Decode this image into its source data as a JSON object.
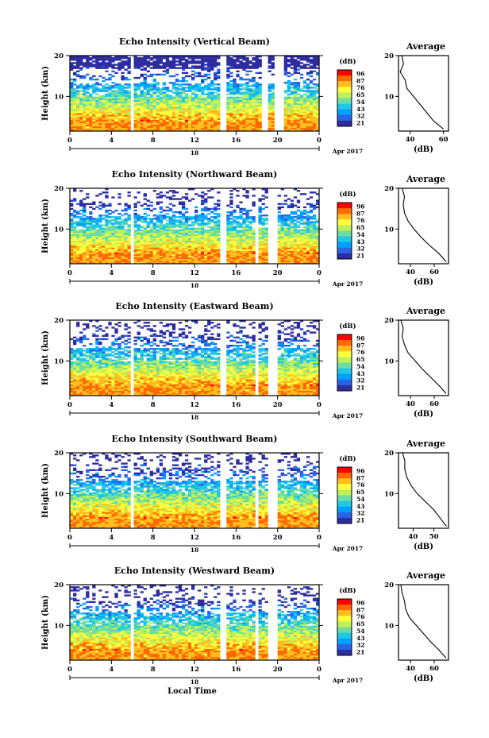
{
  "figure": {
    "x_axis_label": "Local Time",
    "date_day": "18",
    "date_month_year": "Apr 2017"
  },
  "colorbar": {
    "unit": "(dB)",
    "ticks": [
      "96",
      "87",
      "76",
      "65",
      "54",
      "43",
      "32",
      "21"
    ],
    "colors": [
      "#ff0000",
      "#ff6a00",
      "#ffbe1e",
      "#ffff3c",
      "#bef05a",
      "#6edca0",
      "#1ec8e6",
      "#00a0ff",
      "#2864e6",
      "#2d2da0"
    ]
  },
  "average_panel": {
    "title": "Average",
    "xlabel": "(dB)"
  },
  "chart_data": [
    {
      "type": "heatmap",
      "title": "Echo Intensity (Vertical Beam)",
      "xlabel": "",
      "ylabel": "Height (km)",
      "x_ticks": [
        "0",
        "4",
        "8",
        "12",
        "16",
        "20",
        "0"
      ],
      "y_ticks": [
        "10",
        "20"
      ],
      "xlim": [
        0,
        24
      ],
      "ylim": [
        1.5,
        20
      ],
      "data_gaps_hours": [
        [
          5.8,
          6.2
        ],
        [
          14.6,
          15.2
        ],
        [
          18.6,
          19.2
        ],
        [
          19.8,
          20.6
        ]
      ],
      "profile": {
        "title": "Average",
        "xlabel": "(dB)",
        "x_ticks": [
          "40",
          "60"
        ],
        "xlim": [
          33,
          63
        ],
        "heights_km": [
          20,
          18,
          16,
          14,
          12,
          10,
          8,
          6,
          4,
          2
        ],
        "values_db": [
          35,
          36,
          34,
          37,
          38,
          42,
          46,
          50,
          54,
          60
        ]
      }
    },
    {
      "type": "heatmap",
      "title": "Echo Intensity (Northward Beam)",
      "xlabel": "",
      "ylabel": "Height (km)",
      "x_ticks": [
        "0",
        "4",
        "8",
        "12",
        "16",
        "20",
        "0"
      ],
      "y_ticks": [
        "10",
        "20"
      ],
      "xlim": [
        0,
        24
      ],
      "ylim": [
        1.5,
        20
      ],
      "data_gaps_hours": [
        [
          5.8,
          6.2
        ],
        [
          14.6,
          15.2
        ],
        [
          17.8,
          18.2
        ],
        [
          19.2,
          19.9
        ]
      ],
      "profile": {
        "title": "Average",
        "xlabel": "(dB)",
        "x_ticks": [
          "40",
          "60"
        ],
        "xlim": [
          30,
          72
        ],
        "heights_km": [
          20,
          18,
          16,
          14,
          12,
          10,
          8,
          6,
          4,
          2
        ],
        "values_db": [
          33,
          35,
          34,
          35,
          38,
          43,
          49,
          56,
          64,
          70
        ]
      }
    },
    {
      "type": "heatmap",
      "title": "Echo Intensity (Eastward Beam)",
      "xlabel": "",
      "ylabel": "Height (km)",
      "x_ticks": [
        "0",
        "4",
        "8",
        "12",
        "16",
        "20",
        "0"
      ],
      "y_ticks": [
        "10",
        "20"
      ],
      "xlim": [
        0,
        24
      ],
      "ylim": [
        1.5,
        20
      ],
      "data_gaps_hours": [
        [
          5.8,
          6.2
        ],
        [
          14.6,
          15.2
        ],
        [
          17.8,
          18.2
        ],
        [
          19.2,
          19.9
        ]
      ],
      "profile": {
        "title": "Average",
        "xlabel": "(dB)",
        "x_ticks": [
          "40",
          "60"
        ],
        "xlim": [
          30,
          72
        ],
        "heights_km": [
          20,
          18,
          16,
          14,
          12,
          10,
          8,
          6,
          4,
          2
        ],
        "values_db": [
          32,
          34,
          33,
          35,
          38,
          44,
          50,
          57,
          64,
          70
        ]
      }
    },
    {
      "type": "heatmap",
      "title": "Echo Intensity (Southward Beam)",
      "xlabel": "",
      "ylabel": "Height (km)",
      "x_ticks": [
        "0",
        "4",
        "8",
        "12",
        "16",
        "20",
        "0"
      ],
      "y_ticks": [
        "10",
        "20"
      ],
      "xlim": [
        0,
        24
      ],
      "ylim": [
        1.5,
        20
      ],
      "data_gaps_hours": [
        [
          5.8,
          6.2
        ],
        [
          14.6,
          15.2
        ],
        [
          17.8,
          18.2
        ],
        [
          19.2,
          19.9
        ]
      ],
      "profile": {
        "title": "Average",
        "xlabel": "(dB)",
        "x_ticks": [
          "40",
          "50"
        ],
        "xlim": [
          33,
          57
        ],
        "heights_km": [
          20,
          18,
          16,
          14,
          12,
          10,
          8,
          6,
          4,
          2
        ],
        "values_db": [
          35,
          36,
          36,
          37,
          39,
          42,
          46,
          50,
          53,
          56
        ]
      }
    },
    {
      "type": "heatmap",
      "title": "Echo Intensity (Westward Beam)",
      "xlabel": "Local Time",
      "ylabel": "Height (km)",
      "x_ticks": [
        "0",
        "4",
        "8",
        "12",
        "16",
        "20",
        "0"
      ],
      "y_ticks": [
        "10",
        "20"
      ],
      "xlim": [
        0,
        24
      ],
      "ylim": [
        1.5,
        20
      ],
      "data_gaps_hours": [
        [
          5.8,
          6.2
        ],
        [
          14.6,
          15.2
        ],
        [
          17.8,
          18.2
        ],
        [
          19.2,
          19.9
        ]
      ],
      "profile": {
        "title": "Average",
        "xlabel": "(dB)",
        "x_ticks": [
          "40",
          "60"
        ],
        "xlim": [
          30,
          72
        ],
        "heights_km": [
          20,
          18,
          16,
          14,
          12,
          10,
          8,
          6,
          4,
          2
        ],
        "values_db": [
          32,
          33,
          35,
          36,
          39,
          45,
          51,
          57,
          64,
          70
        ]
      }
    }
  ]
}
